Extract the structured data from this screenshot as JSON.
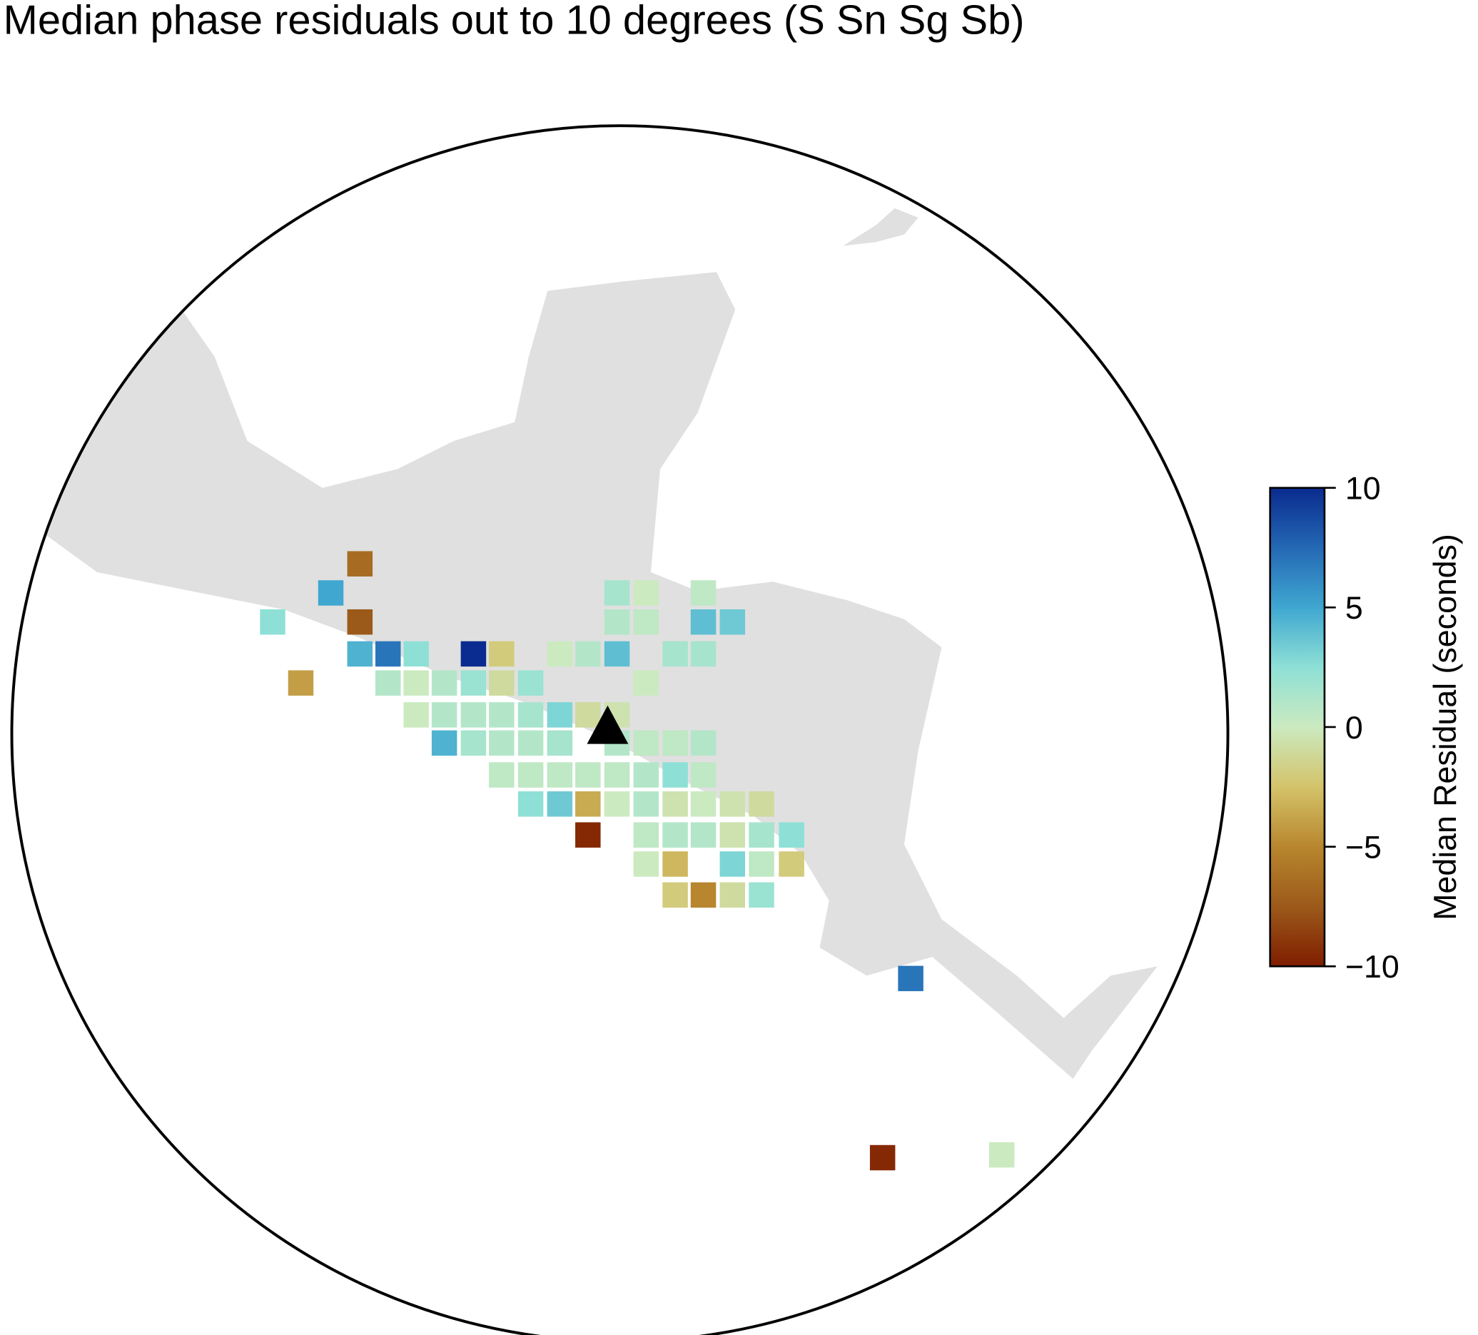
{
  "chart_data": {
    "type": "grid-map",
    "title": "Median phase residuals out to 10 degrees (S Sn Sg Sb)",
    "colorbar": {
      "label": "Median Residual (seconds)",
      "clim": [
        -10,
        10
      ],
      "ticks": [
        {
          "value": 10,
          "label": "10"
        },
        5,
        0,
        {
          "value": -5,
          "label": "−5"
        },
        {
          "value": -10,
          "label": "−10"
        }
      ],
      "colorscale": [
        "#7f1d00",
        "#9c5a1a",
        "#b8862e",
        "#d4c36a",
        "#cbeac0",
        "#8ee0d6",
        "#3fa7d0",
        "#2468b4",
        "#0a2b8f"
      ]
    },
    "values": [
      -6.5,
      5,
      1.5,
      0,
      0.5,
      2.5,
      -7.5,
      1,
      0.5,
      4,
      3.5,
      4.5,
      7,
      2.5,
      10,
      -2,
      0,
      1,
      4,
      1.5,
      1.5,
      -4,
      1,
      0,
      1,
      2,
      -1,
      2,
      0,
      0,
      1,
      1,
      1,
      1.5,
      3,
      -1,
      -0.5,
      4.5,
      1.5,
      1,
      1,
      1.5,
      1,
      0.5,
      0.5,
      1,
      0.5,
      0.5,
      0.5,
      0.5,
      0.5,
      1,
      2.5,
      0.5,
      2.5,
      3.5,
      -3.5,
      0,
      1,
      -0.5,
      0,
      -0.5,
      -1,
      -9.5,
      0.5,
      1,
      1,
      -0.5,
      1.5,
      2.5,
      0,
      -3,
      3,
      0.5,
      -2,
      -2,
      -5,
      -1,
      2,
      7,
      -9.5,
      0
    ]
  }
}
